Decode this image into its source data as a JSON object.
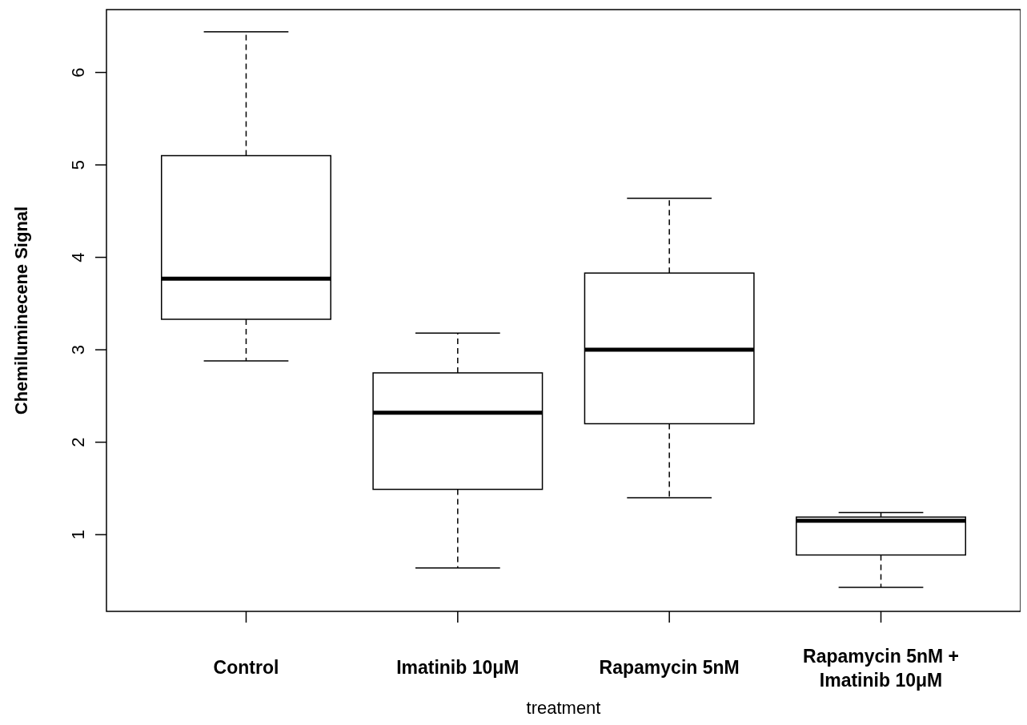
{
  "chart_data": {
    "type": "box",
    "categories": [
      "Control",
      "Imatinib 10μM",
      "Rapamycin 5nM",
      "Rapamycin 5nM +\nImatinib 10μM"
    ],
    "boxes": [
      {
        "low": 2.88,
        "q1": 3.33,
        "median": 3.77,
        "q3": 5.1,
        "high": 6.44
      },
      {
        "low": 0.64,
        "q1": 1.49,
        "median": 2.32,
        "q3": 2.75,
        "high": 3.18
      },
      {
        "low": 1.4,
        "q1": 2.2,
        "median": 3.0,
        "q3": 3.83,
        "high": 4.64
      },
      {
        "low": 0.43,
        "q1": 0.78,
        "median": 1.15,
        "q3": 1.19,
        "high": 1.24
      }
    ],
    "xlabel": "treatment",
    "ylabel": "Chemiluminecene Signal",
    "ylim": [
      0.17,
      6.68
    ],
    "yticks": [
      1,
      2,
      3,
      4,
      5,
      6
    ],
    "grid": false
  }
}
